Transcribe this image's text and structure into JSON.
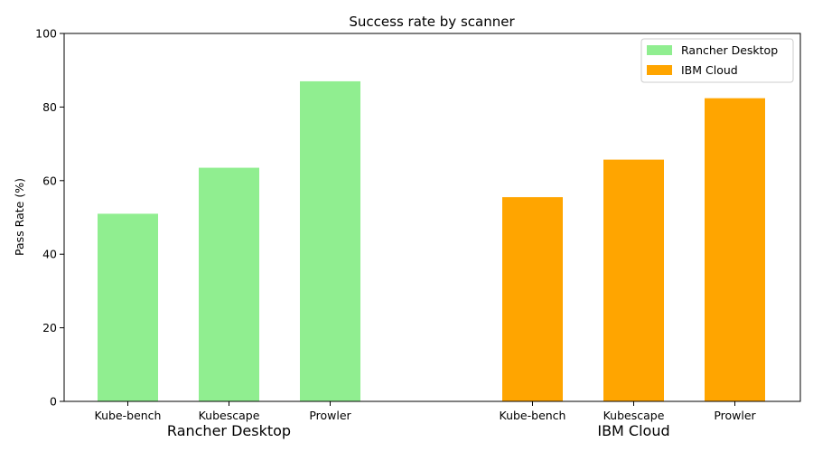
{
  "chart_data": {
    "type": "bar",
    "title": "Success rate by scanner",
    "xlabel": "",
    "ylabel": "Pass Rate (%)",
    "ylim": [
      0,
      100
    ],
    "yticks": [
      0,
      20,
      40,
      60,
      80,
      100
    ],
    "categories": [
      "Kube-bench",
      "Kubescape",
      "Prowler"
    ],
    "legend_position": "top-right",
    "grid": false,
    "series": [
      {
        "name": "Rancher Desktop",
        "color": "#90ee90",
        "values": [
          51.0,
          63.5,
          87.0
        ]
      },
      {
        "name": "IBM Cloud",
        "color": "#ffa500",
        "values": [
          55.5,
          65.7,
          82.4
        ]
      }
    ],
    "group_labels": [
      "Rancher Desktop",
      "IBM Cloud"
    ]
  }
}
